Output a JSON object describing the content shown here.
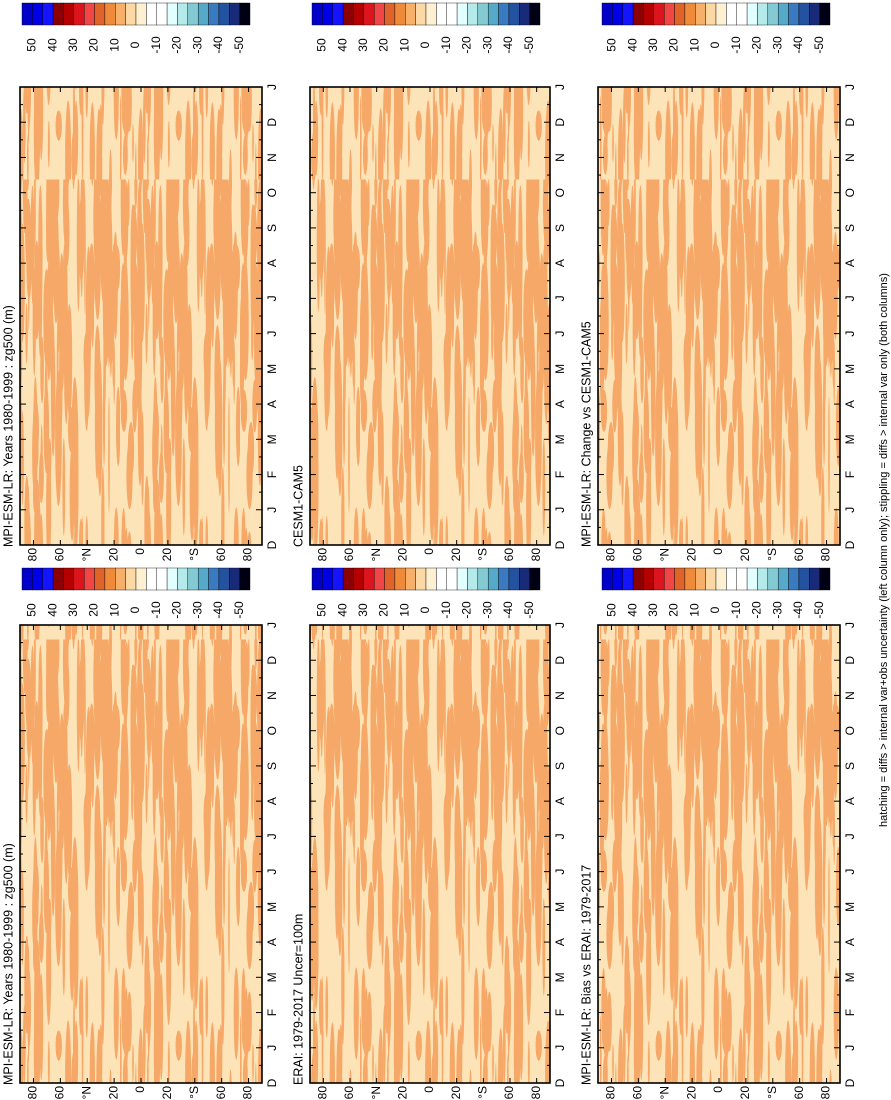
{
  "chart_data": [
    {
      "type": "heatmap",
      "title": "MPI-ESM-LR: Years 1980-1999 : zg500 (m)"
    },
    {
      "type": "heatmap",
      "title": "MPI-ESM-LR: Years 1980-1999 : zg500 (m)"
    },
    {
      "type": "heatmap",
      "title": "ERAI: 1979-2017 Uncer=100m"
    },
    {
      "type": "heatmap",
      "title": "CESM1-CAM5"
    },
    {
      "type": "heatmap",
      "title": "MPI-ESM-LR: Bias vs ERAI: 1979-2017"
    },
    {
      "type": "heatmap",
      "title": "MPI-ESM-LR: Change vs CESM1-CAM5"
    }
  ],
  "categories": [
    "D",
    "J",
    "F",
    "M",
    "A",
    "M",
    "J",
    "J",
    "A",
    "S",
    "O",
    "N",
    "D",
    "J"
  ],
  "ylim": [
    -90,
    90
  ],
  "yticks": [
    80,
    60,
    {
      "value": 40,
      "label": "°N"
    },
    20,
    0,
    {
      "value": -20,
      "label": "20"
    },
    {
      "value": -40,
      "label": "°S"
    },
    {
      "value": -60,
      "label": "60"
    },
    {
      "value": -80,
      "label": "80"
    }
  ],
  "colorbar": {
    "ticks": [
      50,
      40,
      30,
      20,
      10,
      0,
      -10,
      -20,
      -30,
      -40,
      -50
    ],
    "colors": [
      "#0000c8",
      "#0000e6",
      "#1414ff",
      "#8b0000",
      "#b40000",
      "#dc141e",
      "#f04646",
      "#e0642a",
      "#ee8a3a",
      "#f6b06a",
      "#fcd8a4",
      "#fff0d2",
      "#ffffff",
      "#ffffff",
      "#e2ffff",
      "#b4eaea",
      "#84cad2",
      "#54aac8",
      "#3a7ac0",
      "#2252a0",
      "#182a78",
      "#000014"
    ]
  },
  "footnote": "hatching = diffs > internal var+obs uncertainty (left column only); stippling = diffs > internal var only (both columns)"
}
